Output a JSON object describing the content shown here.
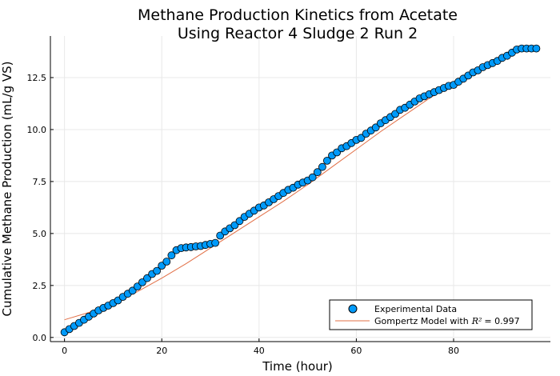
{
  "chart_data": {
    "type": "scatter",
    "title_lines": [
      "Methane Production Kinetics from Acetate",
      "Using Reactor 4 Sludge 2 Run 2"
    ],
    "xlabel": "Time (hour)",
    "ylabel": "Cumulative Methane Production (mL/g VS)",
    "xlim": [
      -2.9,
      99.9
    ],
    "ylim": [
      -0.2,
      14.5
    ],
    "xticks": [
      0,
      20,
      40,
      60,
      80
    ],
    "xtick_labels": [
      "0",
      "20",
      "40",
      "60",
      "80"
    ],
    "yticks": [
      0,
      2.5,
      5,
      7.5,
      10,
      12.5
    ],
    "ytick_labels": [
      "0.0",
      "2.5",
      "5.0",
      "7.5",
      "10.0",
      "12.5"
    ],
    "grid": true,
    "legend_position": "bottom-right",
    "colors": {
      "experimental": "#009AFA",
      "model": "#E26F46",
      "marker_edge": "#000000"
    },
    "series": [
      {
        "name": "Experimental Data",
        "kind": "scatter",
        "x": [
          0,
          1,
          2,
          3,
          4,
          5,
          6,
          7,
          8,
          9,
          10,
          11,
          12,
          13,
          14,
          15,
          16,
          17,
          18,
          19,
          20,
          21,
          22,
          23,
          24,
          25,
          26,
          27,
          28,
          29,
          30,
          31,
          32,
          33,
          34,
          35,
          36,
          37,
          38,
          39,
          40,
          41,
          42,
          43,
          44,
          45,
          46,
          47,
          48,
          49,
          50,
          51,
          52,
          53,
          54,
          55,
          56,
          57,
          58,
          59,
          60,
          61,
          62,
          63,
          64,
          65,
          66,
          67,
          68,
          69,
          70,
          71,
          72,
          73,
          74,
          75,
          76,
          77,
          78,
          79,
          80,
          81,
          82,
          83,
          84,
          85,
          86,
          87,
          88,
          89,
          90,
          91,
          92,
          93,
          94,
          95,
          96,
          97
        ],
        "y": [
          0.25,
          0.4,
          0.55,
          0.7,
          0.85,
          1.0,
          1.15,
          1.3,
          1.42,
          1.53,
          1.65,
          1.78,
          1.95,
          2.1,
          2.25,
          2.45,
          2.65,
          2.85,
          3.05,
          3.2,
          3.45,
          3.65,
          3.95,
          4.2,
          4.3,
          4.33,
          4.35,
          4.38,
          4.4,
          4.45,
          4.5,
          4.55,
          4.9,
          5.1,
          5.25,
          5.4,
          5.6,
          5.8,
          5.95,
          6.1,
          6.25,
          6.35,
          6.5,
          6.65,
          6.8,
          6.95,
          7.1,
          7.2,
          7.35,
          7.45,
          7.55,
          7.7,
          7.95,
          8.2,
          8.5,
          8.75,
          8.9,
          9.1,
          9.2,
          9.35,
          9.5,
          9.6,
          9.8,
          9.95,
          10.1,
          10.3,
          10.45,
          10.6,
          10.75,
          10.95,
          11.05,
          11.2,
          11.35,
          11.5,
          11.6,
          11.7,
          11.8,
          11.9,
          12.0,
          12.1,
          12.15,
          12.3,
          12.45,
          12.6,
          12.75,
          12.85,
          13.0,
          13.1,
          13.2,
          13.3,
          13.45,
          13.55,
          13.7,
          13.85,
          13.9,
          13.9,
          13.9,
          13.9
        ]
      },
      {
        "name": "Gompertz Model with",
        "name_math": "R²",
        "r2_value": "= 0.997",
        "kind": "line",
        "x": [
          0,
          5,
          10,
          15,
          20,
          25,
          30,
          35,
          40,
          45,
          50,
          55,
          60,
          65,
          70,
          75,
          80,
          85,
          90,
          95,
          97
        ],
        "y": [
          0.85,
          1.2,
          1.65,
          2.2,
          2.85,
          3.55,
          4.3,
          5.05,
          5.8,
          6.55,
          7.35,
          8.2,
          9.05,
          9.9,
          10.7,
          11.5,
          12.2,
          12.85,
          13.45,
          13.95,
          14.05
        ]
      }
    ]
  }
}
